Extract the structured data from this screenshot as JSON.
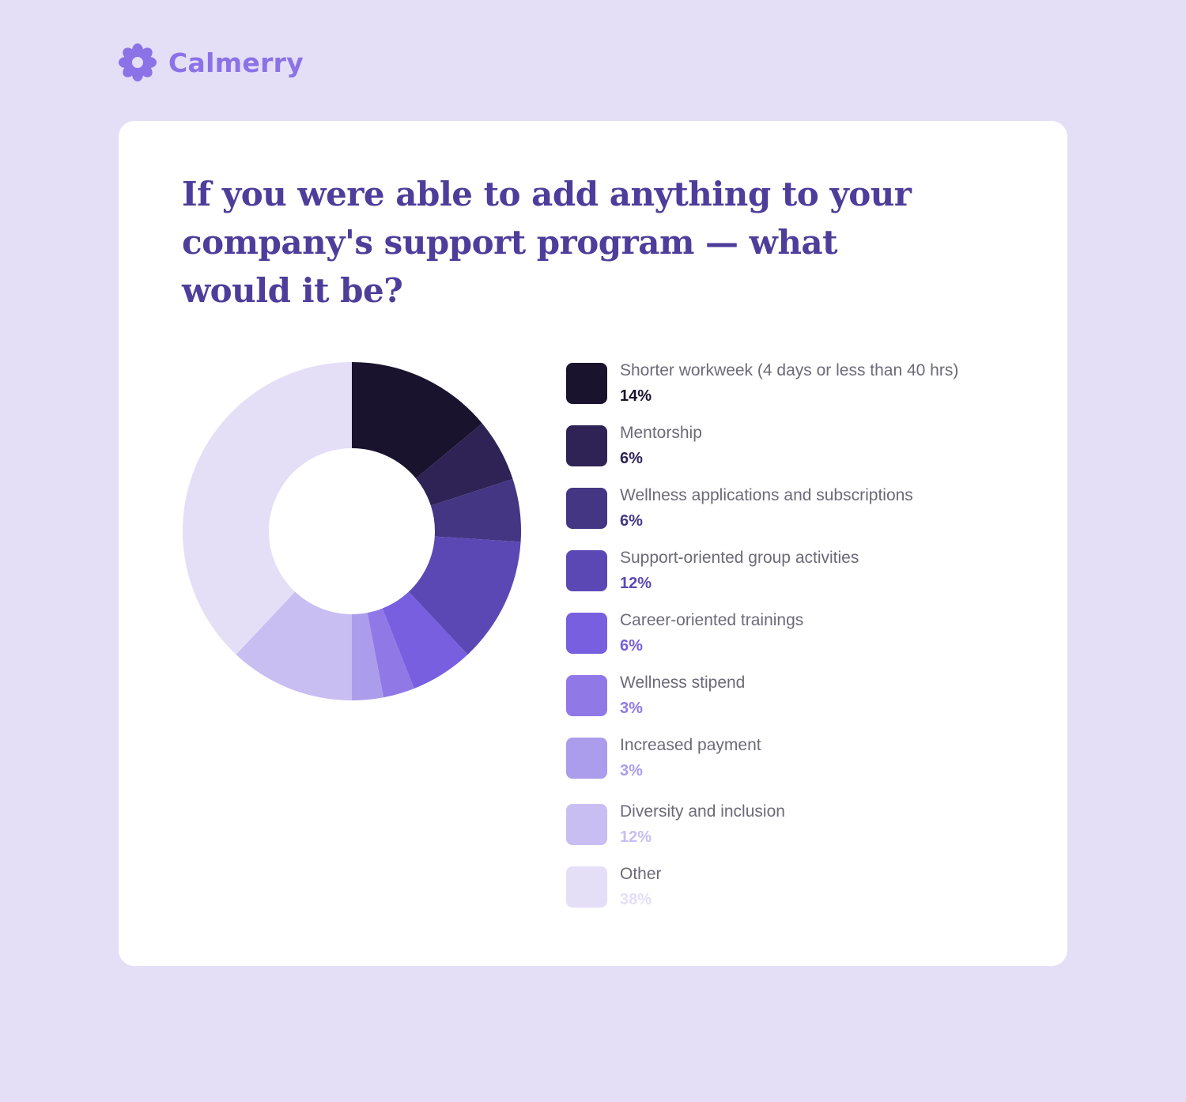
{
  "brand": {
    "name": "Calmerry",
    "icon": "flower-logo-icon",
    "color": "#8b72e6"
  },
  "chart_data": {
    "type": "pie",
    "donut": true,
    "title": "If you were able to add anything to your company's support program — what would it be?",
    "unit": "%",
    "slices": [
      {
        "label": "Shorter workweek (4 days or less than 40 hrs)",
        "value": 14,
        "display": "14%",
        "color": "#1a132e"
      },
      {
        "label": "Mentorship",
        "value": 6,
        "display": "6%",
        "color": "#2f2356"
      },
      {
        "label": "Wellness applications and subscriptions",
        "value": 6,
        "display": "6%",
        "color": "#443683"
      },
      {
        "label": "Support-oriented group activities",
        "value": 12,
        "display": "12%",
        "color": "#5c48b4"
      },
      {
        "label": "Career-oriented trainings",
        "value": 6,
        "display": "6%",
        "color": "#775fdf"
      },
      {
        "label": "Wellness stipend",
        "value": 3,
        "display": "3%",
        "color": "#9079e7"
      },
      {
        "label": "Increased payment",
        "value": 3,
        "display": "3%",
        "color": "#ab9deb"
      },
      {
        "label": "Diversity and inclusion",
        "value": 12,
        "display": "12%",
        "color": "#c8bef2"
      },
      {
        "label": "Other",
        "value": 38,
        "display": "38%",
        "color": "#e4dff7"
      }
    ],
    "legend_position": "right"
  }
}
